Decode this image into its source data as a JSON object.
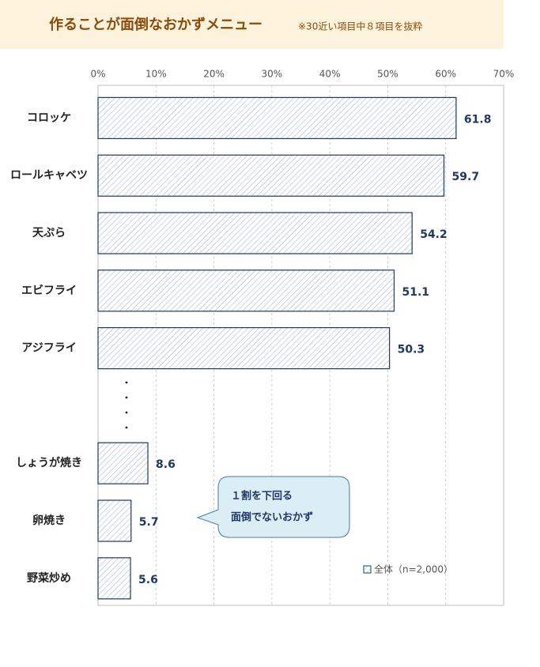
{
  "chart_data": {
    "type": "hbar",
    "title": "作ることが面倒なおかずメニュー",
    "subtitle": "※30近い項目中８項目を抜粋",
    "categories": [
      "コロッケ",
      "ロールキャベツ",
      "天ぷら",
      "エビフライ",
      "アジフライ",
      null,
      "しょうが焼き",
      "卵焼き",
      "野菜炒め"
    ],
    "series": [
      {
        "name": "全体（n=2,000）",
        "color": "#1f3864",
        "values": [
          61.8,
          59.7,
          54.2,
          51.1,
          50.3,
          null,
          8.6,
          5.7,
          5.6
        ]
      }
    ],
    "xlim": [
      0,
      70
    ],
    "xticks": [
      {
        "value": 0,
        "label": "0%"
      },
      {
        "value": 10,
        "label": "10%"
      },
      {
        "value": 20,
        "label": "20%"
      },
      {
        "value": 30,
        "label": "30%"
      },
      {
        "value": 40,
        "label": "40%"
      },
      {
        "value": 50,
        "label": "50%"
      },
      {
        "value": 60,
        "label": "60%"
      },
      {
        "value": 70,
        "label": "70%"
      }
    ],
    "grid": true,
    "annotation": [
      "１割を下回る",
      "面倒でないおかず"
    ]
  }
}
